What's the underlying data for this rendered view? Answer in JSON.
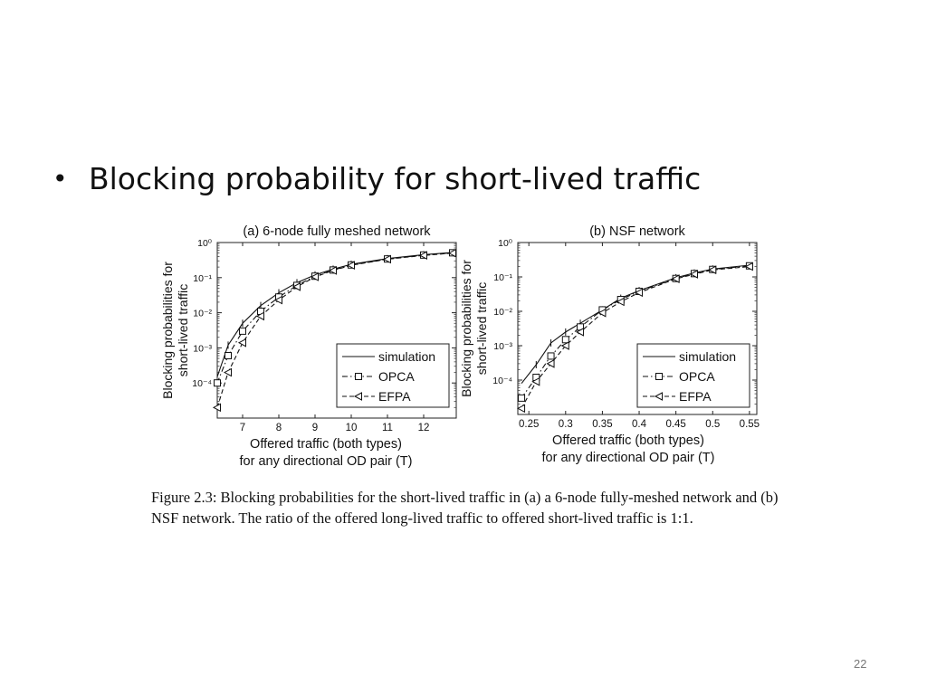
{
  "slide": {
    "bullet_symbol": "•",
    "bullet_text": "Blocking probability for short-lived traffic",
    "caption": "Figure 2.3: Blocking probabilities for the short-lived traffic in (a) a 6-node fully-meshed network and (b) NSF network. The ratio of the offered long-lived traffic to offered short-lived traffic is 1:1.",
    "slide_number": "22"
  },
  "chart_data": [
    {
      "type": "line",
      "title": "(a) 6-node fully meshed network",
      "ylabel": [
        "Blocking probabilities for",
        "short-lived traffic"
      ],
      "xlabel": [
        "Offered traffic (both types)",
        "for any directional OD pair (T)"
      ],
      "yscale": "log",
      "xlim": [
        6.3,
        12.9
      ],
      "ylim": [
        1e-05,
        1
      ],
      "xticks": [
        7,
        8,
        9,
        10,
        11,
        12
      ],
      "xtick_labels": [
        "7",
        "8",
        "9",
        "10",
        "11",
        "12"
      ],
      "yticks": [
        0.0001,
        0.001,
        0.01,
        0.1,
        1
      ],
      "ytick_labels": [
        "10⁻⁴",
        "10⁻³",
        "10⁻²",
        "10⁻¹",
        "10⁰"
      ],
      "legend": "lower-right",
      "series": [
        {
          "name": "simulation",
          "marker": "none",
          "dash": "solid",
          "x": [
            6.3,
            6.6,
            7.0,
            7.5,
            8.0,
            8.5,
            9.0,
            9.5,
            10.0,
            11.0,
            12.0,
            12.9
          ],
          "y": [
            0.00015,
            0.0012,
            0.005,
            0.016,
            0.037,
            0.072,
            0.12,
            0.175,
            0.24,
            0.35,
            0.45,
            0.53
          ]
        },
        {
          "name": "OPCA",
          "marker": "square",
          "dash": "dashdot",
          "x": [
            6.3,
            6.6,
            7.0,
            7.5,
            8.0,
            8.5,
            9.0,
            9.5,
            10.0,
            11.0,
            12.0,
            12.8
          ],
          "y": [
            0.0001,
            0.0006,
            0.003,
            0.011,
            0.028,
            0.06,
            0.11,
            0.165,
            0.23,
            0.34,
            0.44,
            0.51
          ]
        },
        {
          "name": "EFPA",
          "marker": "triangle-left",
          "dash": "dashed",
          "x": [
            6.3,
            6.6,
            7.0,
            7.5,
            8.0,
            8.5,
            9.0,
            9.5,
            10.0,
            11.0,
            12.0,
            12.8
          ],
          "y": [
            2e-05,
            0.0002,
            0.0014,
            0.008,
            0.023,
            0.055,
            0.105,
            0.16,
            0.225,
            0.335,
            0.43,
            0.5
          ]
        }
      ]
    },
    {
      "type": "line",
      "title": "(b)  NSF network",
      "ylabel": [
        "Blocking probabilities for",
        "short-lived traffic"
      ],
      "xlabel": [
        "Offered traffic (both types)",
        "for any directional OD pair (T)"
      ],
      "yscale": "log",
      "xlim": [
        0.235,
        0.56
      ],
      "ylim": [
        1e-05,
        1
      ],
      "xticks": [
        0.25,
        0.3,
        0.35,
        0.4,
        0.45,
        0.5,
        0.55
      ],
      "xtick_labels": [
        "0.25",
        "0.3",
        "0.35",
        "0.4",
        "0.45",
        "0.5",
        "0.55"
      ],
      "yticks": [
        0.0001,
        0.001,
        0.01,
        0.1,
        1
      ],
      "ytick_labels": [
        "10⁻⁴",
        "10⁻³",
        "10⁻²",
        "10⁻¹",
        "10⁰"
      ],
      "legend": "lower-right",
      "series": [
        {
          "name": "simulation",
          "marker": "none",
          "dash": "solid",
          "x": [
            0.24,
            0.26,
            0.28,
            0.3,
            0.32,
            0.35,
            0.375,
            0.4,
            0.45,
            0.475,
            0.5,
            0.55
          ],
          "y": [
            8e-05,
            0.00028,
            0.0012,
            0.0025,
            0.0045,
            0.011,
            0.024,
            0.04,
            0.095,
            0.13,
            0.17,
            0.22
          ]
        },
        {
          "name": "OPCA",
          "marker": "square",
          "dash": "dashdot",
          "x": [
            0.24,
            0.26,
            0.28,
            0.3,
            0.32,
            0.35,
            0.375,
            0.4,
            0.45,
            0.475,
            0.5,
            0.55
          ],
          "y": [
            3e-05,
            0.00012,
            0.0005,
            0.0015,
            0.0035,
            0.011,
            0.022,
            0.038,
            0.09,
            0.125,
            0.165,
            0.21
          ]
        },
        {
          "name": "EFPA",
          "marker": "triangle-left",
          "dash": "dashed",
          "x": [
            0.24,
            0.26,
            0.28,
            0.3,
            0.32,
            0.35,
            0.375,
            0.4,
            0.45,
            0.475,
            0.5,
            0.55
          ],
          "y": [
            1.5e-05,
            9e-05,
            0.0003,
            0.001,
            0.0025,
            0.009,
            0.019,
            0.035,
            0.088,
            0.12,
            0.16,
            0.2
          ]
        }
      ]
    }
  ]
}
